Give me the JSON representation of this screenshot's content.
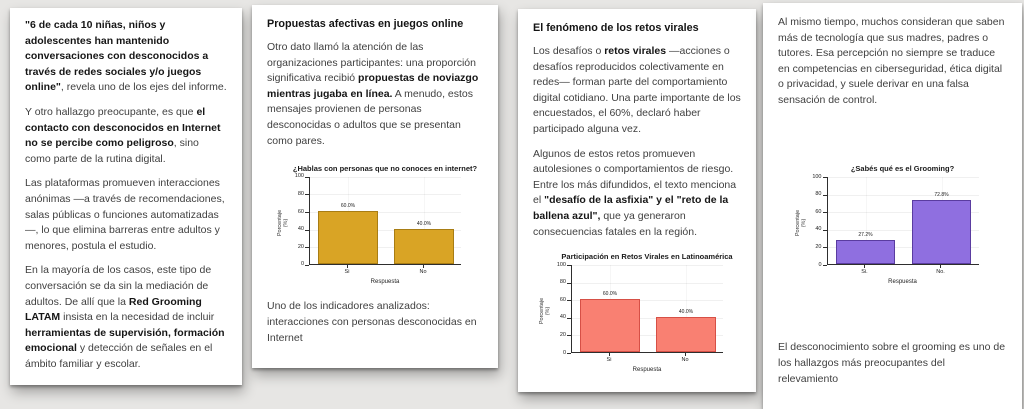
{
  "page": {
    "background": "#e7e6e4",
    "card_background": "#ffffff"
  },
  "chart_data": [
    {
      "type": "bar",
      "title": "¿Hablas con personas que no conoces en internet?",
      "categories": [
        "Si",
        "No"
      ],
      "values": [
        60.0,
        40.0
      ],
      "bar_labels": [
        "60.0%",
        "40.0%"
      ],
      "xlabel": "Respuesta",
      "ylabel": "Porcentaje (%)",
      "ylim": [
        0,
        100
      ],
      "yticks": [
        0,
        20,
        40,
        60,
        80,
        100
      ],
      "bar_color": "#d9a425",
      "bar_edge": "#a87d14",
      "grid": "on",
      "legend": "none"
    },
    {
      "type": "bar",
      "title": "Participación en Retos Virales en Latinoamérica",
      "categories": [
        "Si",
        "No"
      ],
      "values": [
        60.0,
        40.0
      ],
      "bar_labels": [
        "60.0%",
        "40.0%"
      ],
      "xlabel": "Respuesta",
      "ylabel": "Porcentaje (%)",
      "ylim": [
        0,
        100
      ],
      "yticks": [
        0,
        20,
        40,
        60,
        80,
        100
      ],
      "bar_color": "#f98072",
      "bar_edge": "#d65046",
      "grid": "on",
      "legend": "none"
    },
    {
      "type": "bar",
      "title": "¿Sabés qué es el Grooming?",
      "categories": [
        "Si.",
        "No."
      ],
      "values": [
        27.2,
        72.8
      ],
      "bar_labels": [
        "27.2%",
        "72.8%"
      ],
      "xlabel": "Respuesta",
      "ylabel": "Porcentaje (%)",
      "ylim": [
        0,
        100
      ],
      "yticks": [
        0,
        20,
        40,
        60,
        80,
        100
      ],
      "bar_color": "#8f6fe0",
      "bar_edge": "#5a3ca0",
      "grid": "on",
      "legend": "none"
    }
  ],
  "panels": [
    {
      "paragraphs": [
        [
          {
            "text": "\"6 de cada 10 niñas, niños y adolescentes han mantenido conversaciones con desconocidos a través de redes sociales y/o juegos online\"",
            "bold": true
          },
          {
            "text": ", revela uno de los ejes del informe.",
            "bold": false
          }
        ],
        [
          {
            "text": "Y otro hallazgo preocupante, es que ",
            "bold": false
          },
          {
            "text": "el contacto con desconocidos en Internet no se percibe como peligroso",
            "bold": true
          },
          {
            "text": ", sino como parte de la rutina digital.",
            "bold": false
          }
        ],
        [
          {
            "text": "Las plataformas promueven interacciones anónimas —a través de recomendaciones, salas públicas o funciones automatizadas—, lo que elimina barreras entre adultos y menores, postula el estudio.",
            "bold": false
          }
        ],
        [
          {
            "text": "En la mayoría de los casos, este tipo de conversación se da sin la mediación de adultos. De allí que la ",
            "bold": false
          },
          {
            "text": "Red Grooming LATAM",
            "bold": true
          },
          {
            "text": " insista en la necesidad de incluir ",
            "bold": false
          },
          {
            "text": "herramientas de supervisión, formación emocional",
            "bold": true
          },
          {
            "text": " y detección de señales en el ámbito familiar y escolar.",
            "bold": false
          }
        ]
      ]
    },
    {
      "heading": "Propuestas afectivas en juegos online",
      "paragraphs": [
        [
          {
            "text": "Otro dato llamó la atención de las organizaciones participantes: una proporción significativa recibió ",
            "bold": false
          },
          {
            "text": "propuestas de noviazgo mientras jugaba en línea.",
            "bold": true
          },
          {
            "text": " A menudo, estos mensajes provienen de personas desconocidas o adultos que se presentan como pares.",
            "bold": false
          }
        ]
      ],
      "caption": "Uno de los indicadores analizados: interacciones con personas desconocidas en Internet"
    },
    {
      "heading": "El fenómeno de los retos virales",
      "paragraphs": [
        [
          {
            "text": "Los desafíos o ",
            "bold": false
          },
          {
            "text": "retos virales",
            "bold": true
          },
          {
            "text": " —acciones o desafíos reproducidos colectivamente en redes— forman parte del comportamiento digital cotidiano. Una parte importante de los encuestados, el 60%, declaró haber participado alguna vez.",
            "bold": false
          }
        ],
        [
          {
            "text": "Algunos de estos retos promueven autolesiones o comportamientos de riesgo. Entre los más difundidos, el texto menciona el ",
            "bold": false
          },
          {
            "text": "\"desafío de la asfixia\" y el \"reto de la ballena azul\",",
            "bold": true
          },
          {
            "text": " que ya generaron consecuencias fatales en la región.",
            "bold": false
          }
        ]
      ]
    },
    {
      "paragraphs": [
        [
          {
            "text": "Al mismo tiempo, muchos consideran que saben más de tecnología que sus madres, padres o tutores. Esa percepción no siempre se traduce en competencias en ciberseguridad, ética digital o privacidad, y suele derivar en una falsa sensación de control.",
            "bold": false
          }
        ]
      ],
      "caption": "El desconocimiento sobre el grooming es uno de los hallazgos más preocupantes del relevamiento"
    }
  ]
}
